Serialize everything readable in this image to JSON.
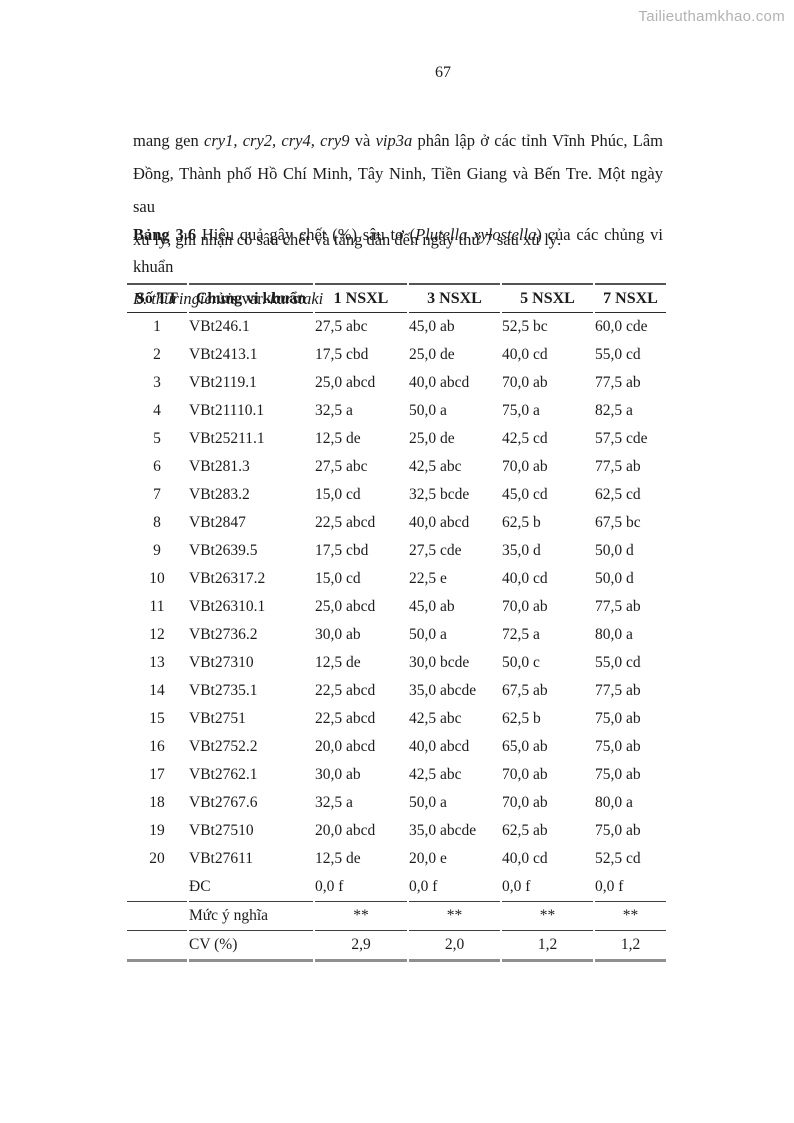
{
  "watermark": {
    "text": "Tailieuthamkhao.com"
  },
  "page_number": "67",
  "paragraph": {
    "lines": [
      [
        {
          "text": "mang gen "
        },
        {
          "text": "cry1, cry2, cry4, cry9",
          "italic": true
        },
        {
          "text": " và "
        },
        {
          "text": "vip3a",
          "italic": true
        },
        {
          "text": " phân lập ở các tỉnh Vĩnh Phúc, Lâm"
        }
      ],
      [
        {
          "text": "Đồng, Thành phố Hồ Chí Minh, Tây Ninh, Tiền Giang và Bến Tre. Một ngày sau"
        }
      ],
      [
        {
          "text": "xử lý, ghi nhận có sâu chết và tăng dần đến ngày thứ 7 sau xử lý."
        }
      ]
    ]
  },
  "caption": {
    "lines": [
      [
        {
          "text": "Bảng 3.6",
          "bold": true
        },
        {
          "text": " Hiệu quả gây chết (%) sâu tơ ("
        },
        {
          "text": "Plutella xylostella",
          "italic": true
        },
        {
          "text": ") của các chủng vi khuẩn"
        }
      ],
      [
        {
          "text": "B. thuringiensis",
          "italic": true
        },
        {
          "text": " var. "
        },
        {
          "text": "kurstaki",
          "italic": true
        }
      ]
    ]
  },
  "table": {
    "headers": [
      "Số TT",
      "Chủng vi khuẩn",
      "1 NSXL",
      "3 NSXL",
      "5 NSXL",
      "7 NSXL"
    ],
    "rows": [
      {
        "stt": "1",
        "strain": "VBt246.1",
        "values": [
          "27,5 abc",
          "45,0 ab",
          "52,5 bc",
          "60,0 cde"
        ]
      },
      {
        "stt": "2",
        "strain": "VBt2413.1",
        "values": [
          "17,5 cbd",
          "25,0 de",
          "40,0 cd",
          "55,0 cd"
        ]
      },
      {
        "stt": "3",
        "strain": "VBt2119.1",
        "values": [
          "25,0 abcd",
          "40,0 abcd",
          "70,0 ab",
          "77,5 ab"
        ]
      },
      {
        "stt": "4",
        "strain": "VBt21110.1",
        "values": [
          "32,5 a",
          "50,0 a",
          "75,0 a",
          "82,5 a"
        ]
      },
      {
        "stt": "5",
        "strain": "VBt25211.1",
        "values": [
          "12,5 de",
          "25,0 de",
          "42,5 cd",
          "57,5 cde"
        ]
      },
      {
        "stt": "6",
        "strain": "VBt281.3",
        "values": [
          "27,5 abc",
          "42,5 abc",
          "70,0 ab",
          "77,5 ab"
        ]
      },
      {
        "stt": "7",
        "strain": "VBt283.2",
        "values": [
          "15,0 cd",
          "32,5 bcde",
          "45,0 cd",
          "62,5 cd"
        ]
      },
      {
        "stt": "8",
        "strain": "VBt2847",
        "values": [
          "22,5 abcd",
          "40,0 abcd",
          "62,5 b",
          "67,5 bc"
        ]
      },
      {
        "stt": "9",
        "strain": "VBt2639.5",
        "values": [
          "17,5 cbd",
          "27,5 cde",
          "35,0 d",
          "50,0 d"
        ]
      },
      {
        "stt": "10",
        "strain": "VBt26317.2",
        "values": [
          "15,0 cd",
          "22,5 e",
          "40,0 cd",
          "50,0 d"
        ]
      },
      {
        "stt": "11",
        "strain": "VBt26310.1",
        "values": [
          "25,0 abcd",
          "45,0 ab",
          "70,0 ab",
          "77,5 ab"
        ]
      },
      {
        "stt": "12",
        "strain": "VBt2736.2",
        "values": [
          "30,0 ab",
          "50,0 a",
          "72,5 a",
          "80,0 a"
        ]
      },
      {
        "stt": "13",
        "strain": "VBt27310",
        "values": [
          "12,5 de",
          "30,0 bcde",
          "50,0 c",
          "55,0 cd"
        ]
      },
      {
        "stt": "14",
        "strain": "VBt2735.1",
        "values": [
          "22,5 abcd",
          "35,0 abcde",
          "67,5 ab",
          "77,5 ab"
        ]
      },
      {
        "stt": "15",
        "strain": "VBt2751",
        "values": [
          "22,5 abcd",
          "42,5 abc",
          "62,5 b",
          "75,0 ab"
        ]
      },
      {
        "stt": "16",
        "strain": "VBt2752.2",
        "values": [
          "20,0 abcd",
          "40,0 abcd",
          "65,0 ab",
          "75,0 ab"
        ]
      },
      {
        "stt": "17",
        "strain": "VBt2762.1",
        "values": [
          "30,0 ab",
          "42,5 abc",
          "70,0 ab",
          "75,0 ab"
        ]
      },
      {
        "stt": "18",
        "strain": "VBt2767.6",
        "values": [
          "32,5 a",
          "50,0 a",
          "70,0 ab",
          "80,0 a"
        ]
      },
      {
        "stt": "19",
        "strain": "VBt27510",
        "values": [
          "20,0 abcd",
          "35,0 abcde",
          "62,5 ab",
          "75,0 ab"
        ]
      },
      {
        "stt": "20",
        "strain": "VBt27611",
        "values": [
          "12,5 de",
          "20,0 e",
          "40,0 cd",
          "52,5 cd"
        ]
      },
      {
        "stt": "",
        "strain": "ĐC",
        "values": [
          "0,0 f",
          "0,0 f",
          "0,0 f",
          "0,0 f"
        ],
        "rule_below": true
      }
    ],
    "footer_rows": [
      {
        "label": "Mức ý nghĩa",
        "values": [
          "**",
          "**",
          "**",
          "**"
        ],
        "kind": "sig"
      },
      {
        "label": "CV (%)",
        "values": [
          "2,9",
          "2,0",
          "1,2",
          "1,2"
        ],
        "kind": "cv"
      }
    ]
  }
}
